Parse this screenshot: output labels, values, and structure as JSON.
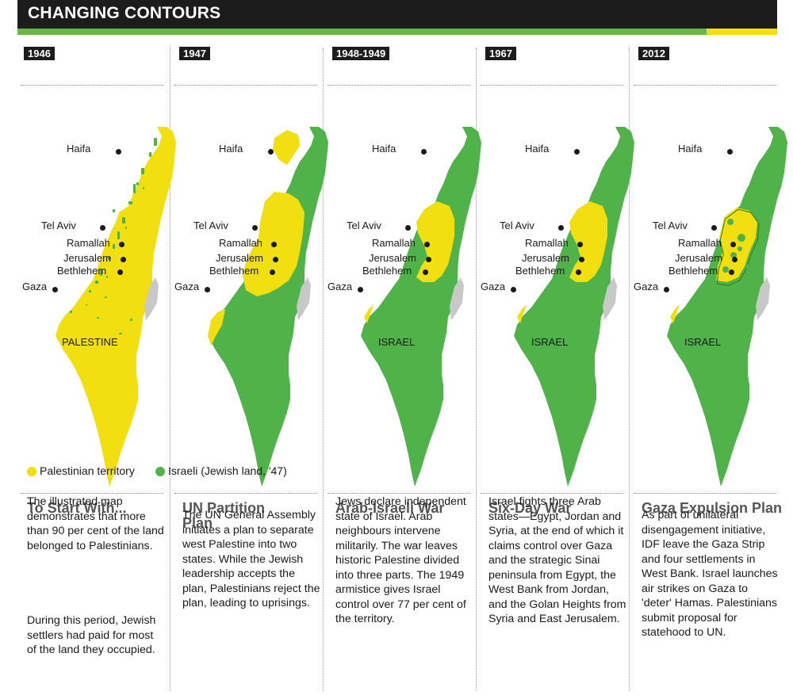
{
  "header": {
    "title": "CHANGING CONTOURS"
  },
  "colors": {
    "palestinian": "#f2df10",
    "israeli": "#4fb349",
    "sea_area": "#c8c8c8",
    "header_bg": "#1c1c1c",
    "header_bar": "#6ab744"
  },
  "cities": {
    "haifa": "Haifa",
    "tel_aviv": "Tel Aviv",
    "ramallah": "Ramallah",
    "jerusalem": "Jerusalem",
    "bethlehem": "Bethlehem",
    "gaza": "Gaza"
  },
  "panels": [
    {
      "year": "1946",
      "label": "PALESTINE",
      "title": "To Start With...",
      "paragraphs": [
        "The illustrated map demonstrates that more than 90 per cent of the land belonged to Palestinians.",
        "During this period, Jewish settlers had paid for most of the land they occupied."
      ]
    },
    {
      "year": "1947",
      "label": "",
      "title": "UN Partition Plan",
      "paragraphs": [
        "The UN General Assembly initiates a plan to separate west Palestine into two states. While the Jewish leadership accepts the plan, Palestinians reject the plan, leading to uprisings."
      ]
    },
    {
      "year": "1948-1949",
      "label": "ISRAEL",
      "title": "Arab-Israeli War",
      "paragraphs": [
        "Jews declare independent state of Israel. Arab neighbours intervene militarily. The war leaves historic Palestine divided into three parts. The 1949 armistice gives Israel control over 77 per cent of the territory."
      ]
    },
    {
      "year": "1967",
      "label": "ISRAEL",
      "title": "Six-Day War",
      "paragraphs": [
        "Israel fights three Arab states—Egypt, Jordan and Syria, at the end of which it claims control over Gaza and the strategic Sinai peninsula from Egypt, the West Bank from Jordan, and the Golan Heights from Syria and East Jerusalem."
      ]
    },
    {
      "year": "2012",
      "label": "ISRAEL",
      "title": "Gaza Expulsion Plan",
      "paragraphs": [
        "As part of unilateral disengagement initiative, IDF leave the Gaza Strip and four settlements in West Bank. Israel launches air strikes on Gaza to 'deter' Hamas. Palestinians submit proposal for statehood to UN."
      ]
    }
  ],
  "legend": [
    {
      "label": "Palestinian territory",
      "color": "#f2df10"
    },
    {
      "label": "Israeli (Jewish land, '47)",
      "color": "#4fb349"
    }
  ]
}
